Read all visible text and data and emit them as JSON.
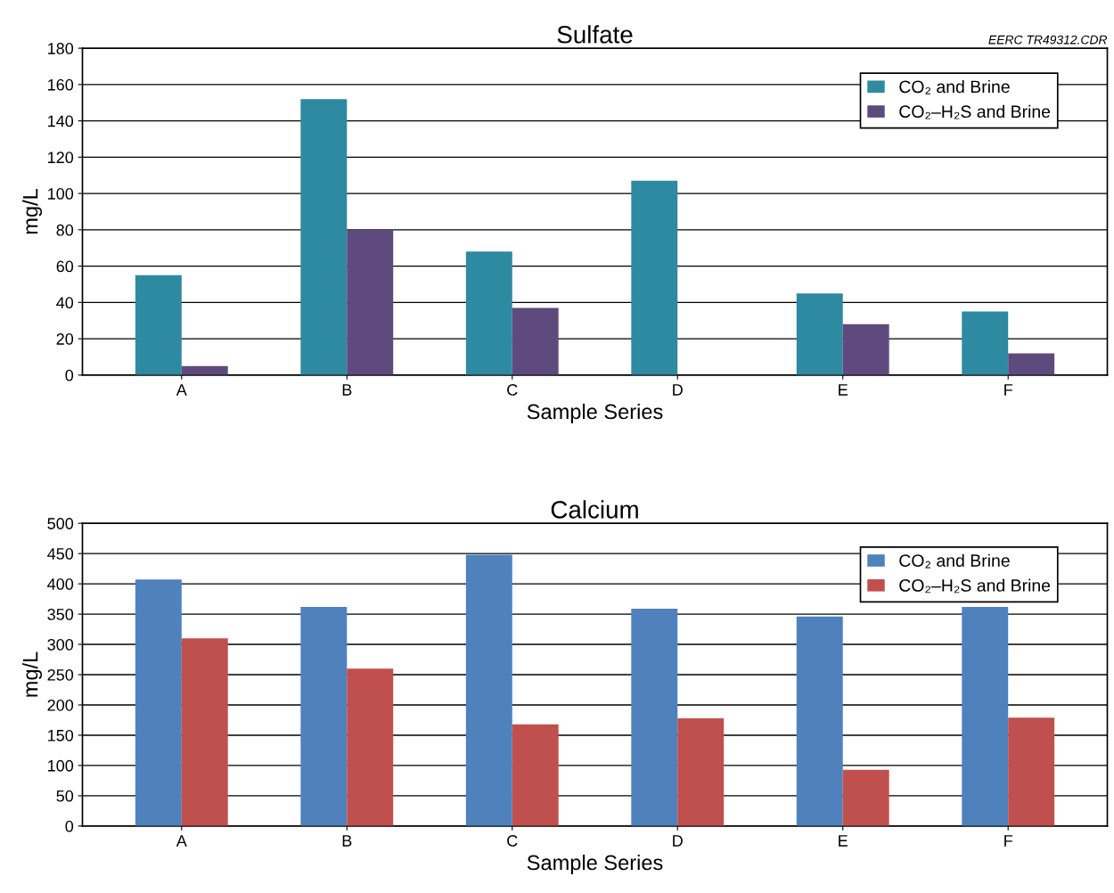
{
  "chart_data": [
    {
      "type": "bar",
      "title": "Sulfate",
      "xlabel": "Sample Series",
      "ylabel": "mg/L",
      "categories": [
        "A",
        "B",
        "C",
        "D",
        "E",
        "F"
      ],
      "series": [
        {
          "name": "CO₂ and Brine",
          "color": "#2e8aa0",
          "values": [
            55,
            152,
            68,
            107,
            45,
            35
          ]
        },
        {
          "name": "CO₂–H₂S and Brine",
          "color": "#5f4a7e",
          "values": [
            5,
            80,
            37,
            0,
            28,
            12
          ]
        }
      ],
      "ylim": [
        0,
        180
      ],
      "yticks": [
        0,
        20,
        40,
        60,
        80,
        100,
        120,
        140,
        160,
        180
      ],
      "grid": "y",
      "legend": "top right",
      "annotations": [
        "EERC TR49312.CDR"
      ]
    },
    {
      "type": "bar",
      "title": "Calcium",
      "xlabel": "Sample Series",
      "ylabel": "mg/L",
      "categories": [
        "A",
        "B",
        "C",
        "D",
        "E",
        "F"
      ],
      "series": [
        {
          "name": "CO₂ and Brine",
          "color": "#4f81bd",
          "values": [
            407,
            362,
            448,
            359,
            346,
            362
          ]
        },
        {
          "name": "CO₂–H₂S and Brine",
          "color": "#c0504d",
          "values": [
            310,
            260,
            168,
            178,
            93,
            179
          ]
        }
      ],
      "ylim": [
        0,
        500
      ],
      "yticks": [
        0,
        50,
        100,
        150,
        200,
        250,
        300,
        350,
        400,
        450,
        500
      ],
      "grid": "y",
      "legend": "top right"
    }
  ]
}
